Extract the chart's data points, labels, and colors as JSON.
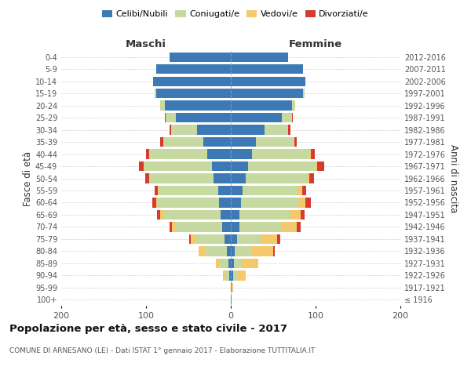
{
  "age_groups": [
    "100+",
    "95-99",
    "90-94",
    "85-89",
    "80-84",
    "75-79",
    "70-74",
    "65-69",
    "60-64",
    "55-59",
    "50-54",
    "45-49",
    "40-44",
    "35-39",
    "30-34",
    "25-29",
    "20-24",
    "15-19",
    "10-14",
    "5-9",
    "0-4"
  ],
  "birth_years": [
    "≤ 1916",
    "1917-1921",
    "1922-1926",
    "1927-1931",
    "1932-1936",
    "1937-1941",
    "1942-1946",
    "1947-1951",
    "1952-1956",
    "1957-1961",
    "1962-1966",
    "1967-1971",
    "1972-1976",
    "1977-1981",
    "1982-1986",
    "1987-1991",
    "1992-1996",
    "1997-2001",
    "2002-2006",
    "2007-2011",
    "2012-2016"
  ],
  "maschi": {
    "celibi": [
      0,
      0,
      2,
      3,
      5,
      7,
      10,
      12,
      14,
      15,
      20,
      22,
      28,
      32,
      40,
      65,
      78,
      88,
      92,
      88,
      72
    ],
    "coniugati": [
      0,
      0,
      5,
      10,
      25,
      35,
      55,
      68,
      72,
      70,
      75,
      80,
      68,
      48,
      30,
      12,
      5,
      2,
      0,
      0,
      0
    ],
    "vedovi": [
      0,
      0,
      2,
      5,
      8,
      5,
      4,
      3,
      2,
      1,
      1,
      1,
      0,
      0,
      0,
      0,
      0,
      0,
      0,
      0,
      0
    ],
    "divorziati": [
      0,
      0,
      0,
      0,
      0,
      2,
      3,
      4,
      5,
      4,
      5,
      5,
      4,
      3,
      2,
      1,
      0,
      0,
      0,
      0,
      0
    ]
  },
  "femmine": {
    "nubili": [
      1,
      1,
      3,
      4,
      5,
      7,
      10,
      10,
      12,
      14,
      18,
      20,
      25,
      30,
      40,
      60,
      72,
      85,
      88,
      85,
      68
    ],
    "coniugate": [
      0,
      0,
      5,
      8,
      20,
      28,
      50,
      60,
      68,
      65,
      72,
      80,
      68,
      45,
      28,
      12,
      4,
      2,
      0,
      0,
      0
    ],
    "vedove": [
      0,
      2,
      10,
      20,
      25,
      20,
      18,
      12,
      8,
      5,
      3,
      2,
      1,
      0,
      0,
      0,
      0,
      0,
      0,
      0,
      0
    ],
    "divorziate": [
      0,
      0,
      0,
      0,
      2,
      3,
      4,
      5,
      6,
      5,
      5,
      8,
      5,
      3,
      2,
      1,
      0,
      0,
      0,
      0,
      0
    ]
  },
  "colors": {
    "celibi": "#3d7ab5",
    "coniugati": "#c5d9a0",
    "vedovi": "#f5c96b",
    "divorziati": "#d63b2f"
  },
  "xlim": 200,
  "title": "Popolazione per età, sesso e stato civile - 2017",
  "subtitle": "COMUNE DI ARNESANO (LE) - Dati ISTAT 1° gennaio 2017 - Elaborazione TUTTITALIA.IT",
  "ylabel_left": "Fasce di età",
  "ylabel_right": "Anni di nascita",
  "xlabel_maschi": "Maschi",
  "xlabel_femmine": "Femmine",
  "bg_color": "#ffffff",
  "grid_color": "#cccccc"
}
